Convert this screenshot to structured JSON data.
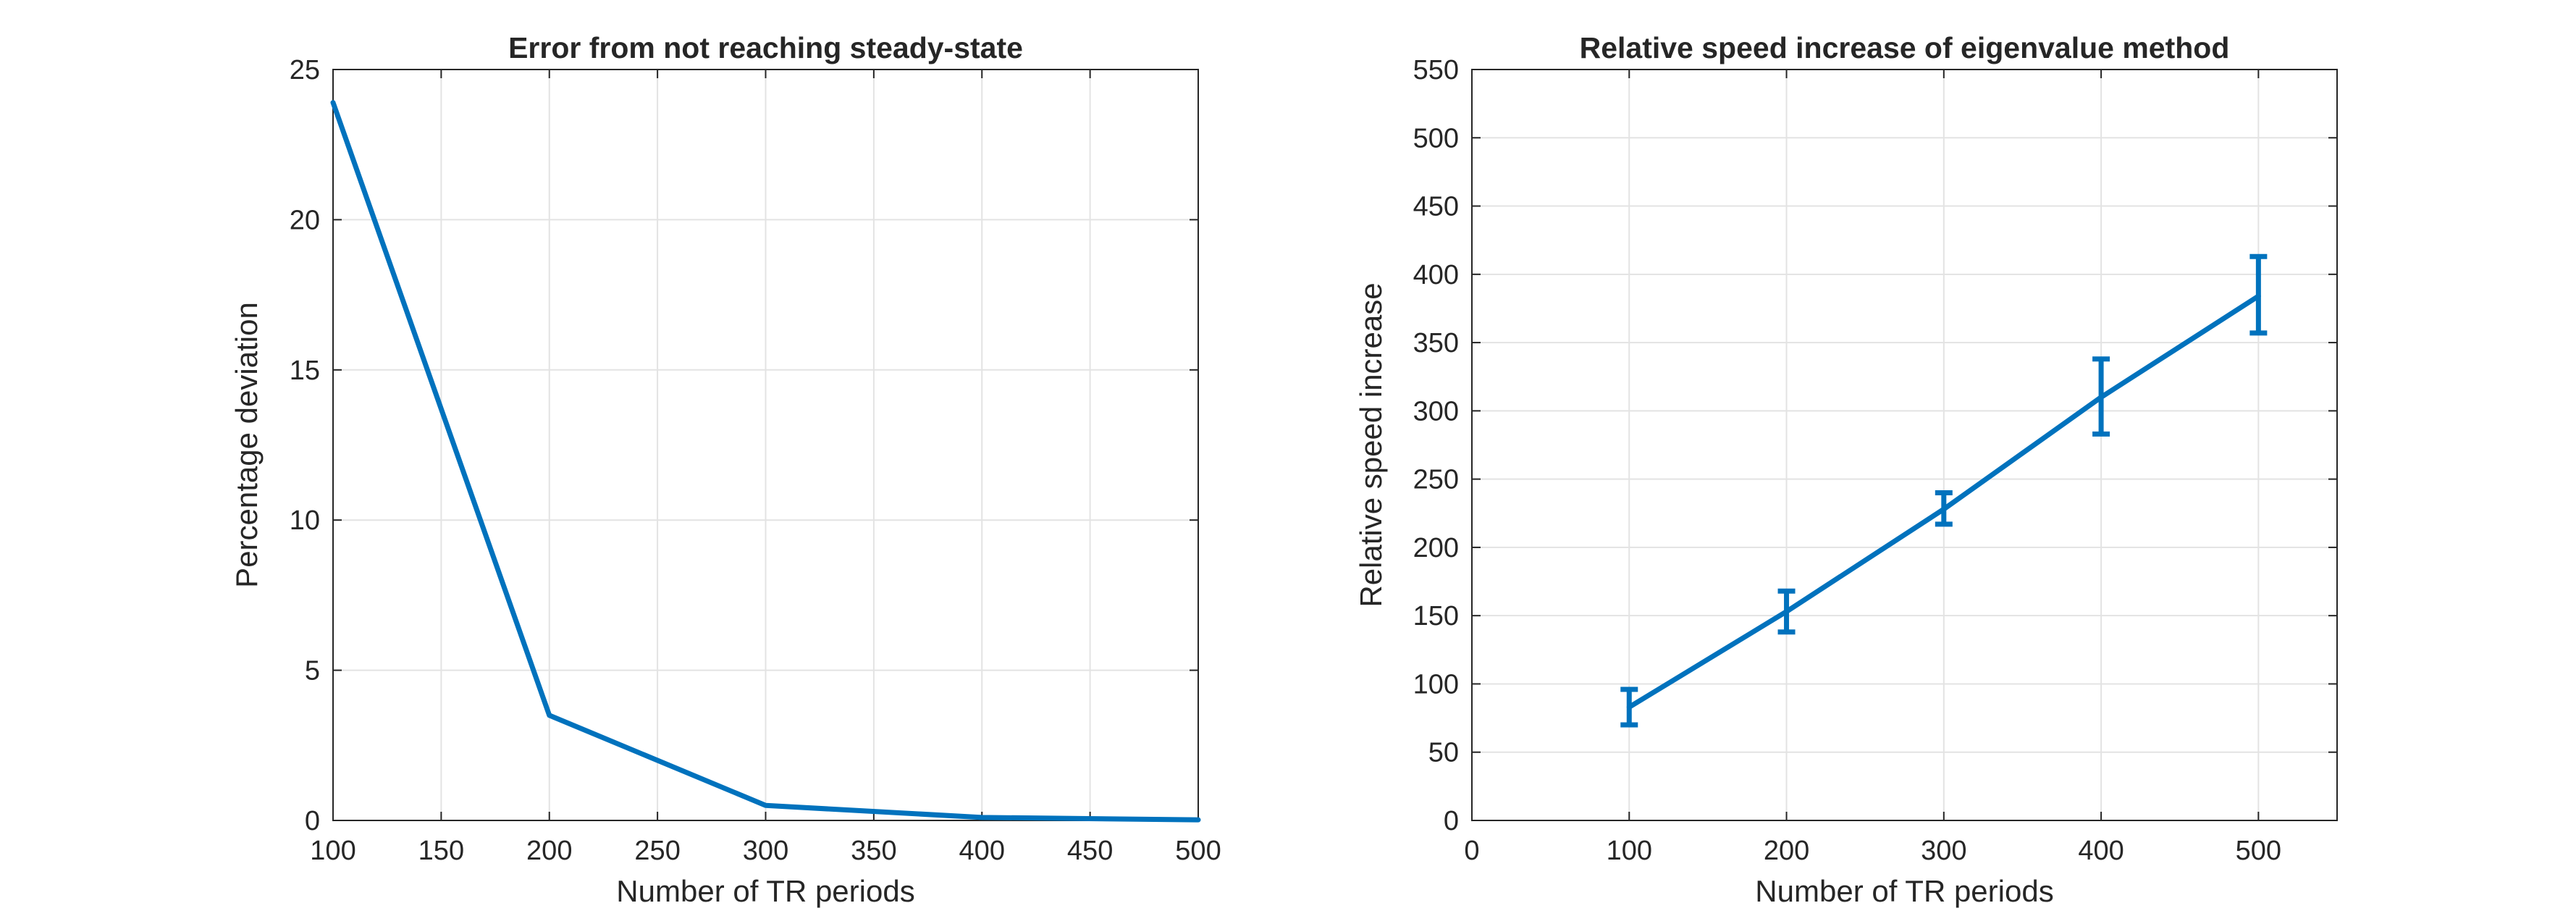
{
  "colors": {
    "series": "#0072BD",
    "grid": "#e3e3e3",
    "axis": "#262626"
  },
  "chart_data": [
    {
      "type": "line",
      "title": "Error from not reaching steady-state",
      "xlabel": "Number of TR periods",
      "ylabel": "Percentage deviation",
      "xlim": [
        100,
        500
      ],
      "ylim": [
        0,
        25
      ],
      "xticks": [
        100,
        150,
        200,
        250,
        300,
        350,
        400,
        450,
        500
      ],
      "yticks": [
        0,
        5,
        10,
        15,
        20,
        25
      ],
      "grid": true,
      "series": [
        {
          "x": [
            100,
            200,
            300,
            400,
            500
          ],
          "y": [
            23.9,
            3.5,
            0.5,
            0.1,
            0.02
          ]
        }
      ]
    },
    {
      "type": "line",
      "title": "Relative speed increase of eigenvalue method",
      "xlabel": "Number of TR periods",
      "ylabel": "Relative speed increase",
      "xlim": [
        0,
        550
      ],
      "ylim": [
        0,
        550
      ],
      "xticks": [
        0,
        100,
        200,
        300,
        400,
        500
      ],
      "yticks": [
        0,
        50,
        100,
        150,
        200,
        250,
        300,
        350,
        400,
        450,
        500,
        550
      ],
      "grid": true,
      "series": [
        {
          "x": [
            100,
            200,
            300,
            400,
            500
          ],
          "y": [
            83,
            153,
            228,
            310,
            384
          ],
          "error_low": [
            70,
            138,
            217,
            283,
            357
          ],
          "error_high": [
            96,
            168,
            240,
            338,
            413
          ]
        }
      ]
    }
  ]
}
